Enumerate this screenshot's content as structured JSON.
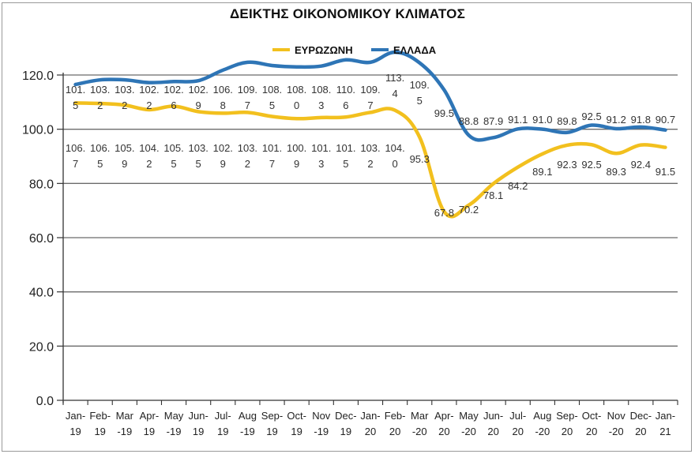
{
  "chart_data": {
    "type": "line",
    "title": "ΔΕΙΚΤΗΣ ΟΙΚΟΝΟΜΙΚΟΥ ΚΛΙΜΑΤΟΣ",
    "xlabel": "",
    "ylabel": "",
    "ylim": [
      0,
      120
    ],
    "yticks": [
      "0.0",
      "20.0",
      "40.0",
      "60.0",
      "80.0",
      "100.0",
      "120.0"
    ],
    "grid": true,
    "legend_position": "top-right",
    "categories": [
      [
        "Jan-",
        "19"
      ],
      [
        "Feb-",
        "19"
      ],
      [
        "Mar",
        "-19"
      ],
      [
        "Apr-",
        "19"
      ],
      [
        "May",
        "-19"
      ],
      [
        "Jun-",
        "19"
      ],
      [
        "Jul-",
        "19"
      ],
      [
        "Aug",
        "-19"
      ],
      [
        "Sep-",
        "19"
      ],
      [
        "Oct-",
        "19"
      ],
      [
        "Nov",
        "-19"
      ],
      [
        "Dec-",
        "19"
      ],
      [
        "Jan-",
        "20"
      ],
      [
        "Feb-",
        "20"
      ],
      [
        "Mar",
        "-20"
      ],
      [
        "Apr-",
        "20"
      ],
      [
        "May",
        "-20"
      ],
      [
        "Jun-",
        "20"
      ],
      [
        "Jul-",
        "20"
      ],
      [
        "Aug",
        "-20"
      ],
      [
        "Sep-",
        "20"
      ],
      [
        "Oct-",
        "20"
      ],
      [
        "Nov",
        "-20"
      ],
      [
        "Dec-",
        "20"
      ],
      [
        "Jan-",
        "21"
      ]
    ],
    "series": [
      {
        "name": "ΕΥΡΩΖΩΝΗ",
        "color": "#f2c01e",
        "values": [
          106.7,
          106.5,
          105.9,
          104.2,
          105.5,
          103.5,
          102.9,
          103.2,
          101.7,
          100.9,
          101.3,
          101.5,
          103.2,
          104.0,
          95.3,
          67.8,
          70.2,
          78.1,
          84.2,
          89.1,
          92.3,
          92.5,
          89.3,
          92.4,
          91.5
        ]
      },
      {
        "name": "ΕΛΛΑΔΑ",
        "color": "#2e75b6",
        "values": [
          101.5,
          103.2,
          103.2,
          102.2,
          102.6,
          102.9,
          106.8,
          109.7,
          108.5,
          108.0,
          108.3,
          110.6,
          109.7,
          113.4,
          109.5,
          99.5,
          88.8,
          87.9,
          91.1,
          91.0,
          89.8,
          92.5,
          91.2,
          91.8,
          90.7
        ]
      }
    ]
  }
}
